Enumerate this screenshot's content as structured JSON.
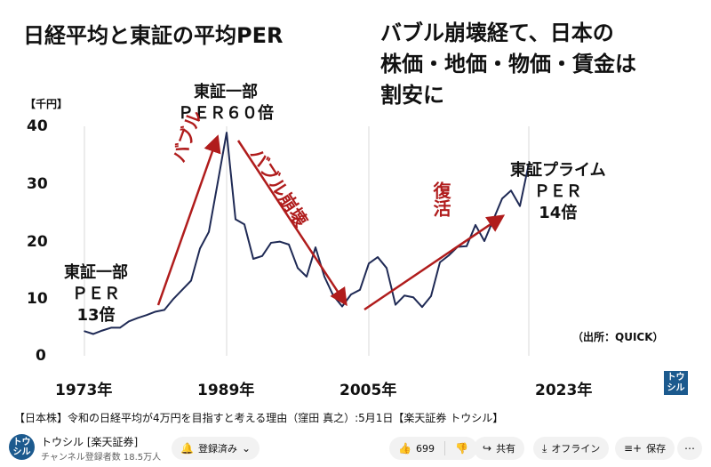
{
  "slide": {
    "title_left": "日経平均と東証の平均PER",
    "title_right_lines": [
      "バブル崩壊経て、日本の",
      "株価・地価・物価・賃金は",
      "割安に"
    ],
    "unit_label": "【千円】",
    "source": "（出所：QUICK）",
    "logo_text": "トウシル",
    "annotations": {
      "peak_label": [
        "東証一部",
        "ＰＥＲ６０倍"
      ],
      "start_label": [
        "東証一部",
        "ＰＥＲ",
        "13倍"
      ],
      "end_label": [
        "東証プライム",
        "ＰＥＲ",
        "14倍"
      ],
      "bubble": "バブル",
      "bubble_burst": "バブル崩壊",
      "recovery": "復活"
    },
    "colors": {
      "line": "#1f2a55",
      "arrow": "#b01c1c",
      "axis": "#111111",
      "grid": "#d9d9d9"
    }
  },
  "chart_data": {
    "type": "line",
    "xlabel": "",
    "ylabel": "",
    "ylim": [
      0,
      40
    ],
    "yticks": [
      "0",
      "10",
      "20",
      "30",
      "40"
    ],
    "xtick_labels": [
      "1973年",
      "1989年",
      "2005年",
      "2023年"
    ],
    "grid": "vertical",
    "x": [
      1973,
      1974,
      1975,
      1976,
      1977,
      1978,
      1979,
      1980,
      1981,
      1982,
      1983,
      1984,
      1985,
      1986,
      1987,
      1988,
      1989,
      1990,
      1991,
      1992,
      1993,
      1994,
      1995,
      1996,
      1997,
      1998,
      1999,
      2000,
      2001,
      2002,
      2003,
      2004,
      2005,
      2006,
      2007,
      2008,
      2009,
      2010,
      2011,
      2012,
      2013,
      2014,
      2015,
      2016,
      2017,
      2018,
      2019,
      2020,
      2021,
      2022,
      2023
    ],
    "series": [
      {
        "values": [
          4.3,
          3.8,
          4.4,
          4.9,
          4.9,
          6.0,
          6.6,
          7.1,
          7.7,
          8.0,
          9.9,
          11.5,
          13.1,
          18.7,
          21.6,
          30.2,
          38.9,
          23.8,
          22.9,
          16.9,
          17.4,
          19.7,
          19.9,
          19.4,
          15.3,
          13.8,
          18.9,
          13.8,
          10.5,
          8.6,
          10.7,
          11.5,
          16.1,
          17.2,
          15.3,
          8.9,
          10.5,
          10.2,
          8.5,
          10.4,
          16.3,
          17.5,
          19.0,
          19.1,
          22.8,
          20.0,
          23.7,
          27.4,
          28.8,
          26.1,
          33.5
        ]
      }
    ]
  },
  "youtube": {
    "video_title": "【日本株】令和の日経平均が4万円を目指すと考える理由（窪田 真之）:5月1日【楽天証券 トウシル】",
    "channel_name": "トウシル [楽天証券]",
    "channel_subs": "チャンネル登録者数 18.5万人",
    "avatar_text": "トウシル",
    "subscribed_label": "登録済み",
    "like_count": "699",
    "share_label": "共有",
    "offline_label": "オフライン",
    "save_label": "保存"
  }
}
